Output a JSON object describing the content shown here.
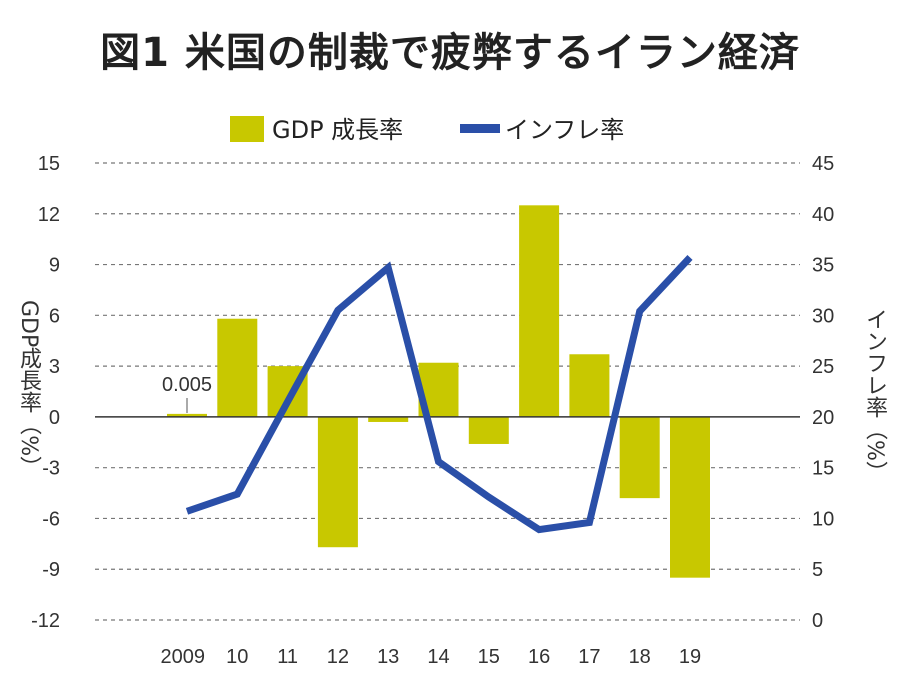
{
  "chart_data": {
    "type": "bar",
    "title": "図1 米国の制裁で疲弊するイラン経済",
    "categories": [
      "2009",
      "10",
      "11",
      "12",
      "13",
      "14",
      "15",
      "16",
      "17",
      "18",
      "19"
    ],
    "series": [
      {
        "name": "GDP 成長率",
        "type": "bar",
        "axis": "left",
        "values": [
          0.005,
          5.8,
          3.0,
          -7.7,
          -0.3,
          3.2,
          -1.6,
          12.5,
          3.7,
          -4.8,
          -9.5
        ]
      },
      {
        "name": "インフレ率",
        "type": "line",
        "axis": "right",
        "values": [
          10.7,
          12.4,
          21.5,
          30.5,
          34.7,
          15.6,
          12.1,
          8.9,
          9.6,
          30.4,
          35.7
        ]
      }
    ],
    "annotations": [
      "0.005"
    ],
    "ylabel": "GDP成長率（%）",
    "y2label": "インフレ率（%）",
    "ylim": [
      -12,
      15
    ],
    "yticks": [
      "15",
      "12",
      "9",
      "6",
      "3",
      "0",
      "-3",
      "-6",
      "-9",
      "-12"
    ],
    "y2lim": [
      0,
      45
    ],
    "y2ticks": [
      "45",
      "40",
      "35",
      "30",
      "25",
      "20",
      "15",
      "10",
      "5",
      "0"
    ],
    "grid": true,
    "legend": "top",
    "colors": {
      "bar": "#c8c800",
      "line": "#2a4fa8"
    }
  }
}
